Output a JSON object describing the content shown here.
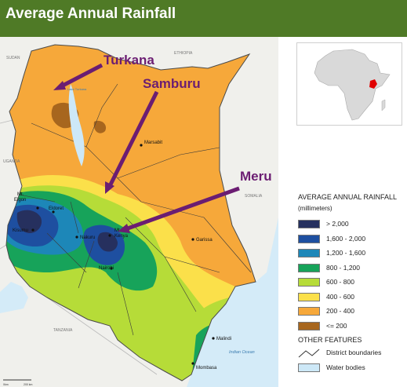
{
  "header": {
    "title": "Average Annual Rainfall",
    "color": "#4f7a26"
  },
  "callouts": [
    {
      "id": "turkana",
      "label": "Turkana"
    },
    {
      "id": "samburu",
      "label": "Samburu"
    },
    {
      "id": "meru",
      "label": "Meru"
    }
  ],
  "callout_color": "#6b1d72",
  "map_labels": {
    "sudan": "SUDAN",
    "ethiopia": "ETHIOPIA",
    "uganda": "UGANDA",
    "somalia": "SOMALIA",
    "tanzania": "TANZANIA",
    "indian_ocean": "Indian Ocean",
    "lake_turkana": "Lake Turkana",
    "marsabit": "Marsabit",
    "mt_elgon_1": "Mt.",
    "mt_elgon_2": "Elgon",
    "eldoret": "Eldoret",
    "kisumu": "Kisumu",
    "nakuru": "Nakuru",
    "mt_kenya_1": "Mt.",
    "mt_kenya_2": "Kenya",
    "nairobi": "Nairobi",
    "garissa": "Garissa",
    "malindi": "Malindi",
    "mombasa": "Mombasa",
    "scale_1": "0km",
    "scale_2": "200 km"
  },
  "legend": {
    "title": "AVERAGE ANNUAL RAINFALL",
    "units": "(millimeters)",
    "classes": [
      {
        "label": "> 2,000",
        "color": "#26305e"
      },
      {
        "label": "1,600 - 2,000",
        "color": "#1e4fa0"
      },
      {
        "label": "1,200 - 1,600",
        "color": "#1d87b8"
      },
      {
        "label": "800 - 1,200",
        "color": "#17a35a"
      },
      {
        "label": "600 - 800",
        "color": "#b6dc38"
      },
      {
        "label": "400 - 600",
        "color": "#fbe04a"
      },
      {
        "label": "200 - 400",
        "color": "#f6a83a"
      },
      {
        "label": "<= 200",
        "color": "#a7661e"
      }
    ],
    "other_title": "OTHER FEATURES",
    "district_label": "District boundaries",
    "water_label": "Water bodies",
    "water_color": "#cde8f7"
  },
  "inset": {
    "highlight_color": "#e00000",
    "land_color": "#d9d9d9"
  }
}
